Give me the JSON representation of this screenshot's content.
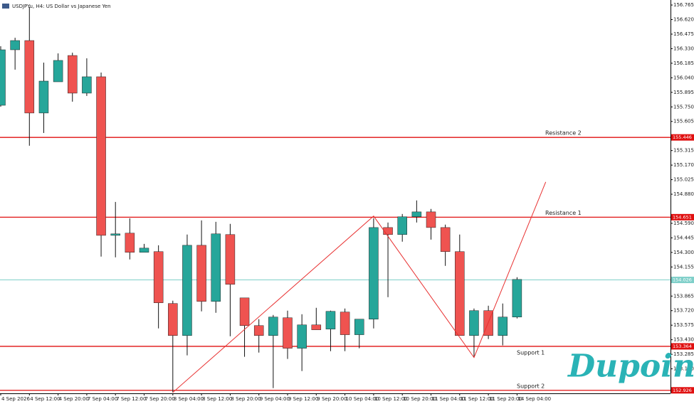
{
  "chart_data": {
    "type": "candlestick",
    "title": "USDJPYu, H4: US Dollar vs Japanese Yen",
    "logo": "Dupoin",
    "x": [
      "4 Sep 2026",
      null,
      "4 Sep 12:00",
      null,
      "4 Sep 20:00",
      null,
      "7 Sep 04:00",
      null,
      "7 Sep 12:00",
      null,
      "7 Sep 20:00",
      null,
      "8 Sep 04:00",
      null,
      "8 Sep 12:00",
      null,
      "8 Sep 20:00",
      null,
      "9 Sep 04:00",
      null,
      "9 Sep 12:00",
      null,
      "9 Sep 20:00",
      null,
      "10 Sep 04:00",
      null,
      "10 Sep 12:00",
      null,
      "10 Sep 20:00",
      null,
      "11 Sep 04:00",
      null,
      "11 Sep 12:00",
      null,
      "11 Sep 20:00",
      null,
      "14 Sep 04:00"
    ],
    "open": [
      155.766,
      156.319,
      156.411,
      155.689,
      156.0,
      156.262,
      155.887,
      156.05,
      154.47,
      154.492,
      154.301,
      154.308,
      153.791,
      153.472,
      154.371,
      153.812,
      154.478,
      153.847,
      153.571,
      153.472,
      153.649,
      153.345,
      153.578,
      153.536,
      153.706,
      153.48,
      153.635,
      154.548,
      154.478,
      154.655,
      154.704,
      154.548,
      154.308,
      153.472,
      153.72,
      153.472,
      153.656
    ],
    "high": [
      156.354,
      156.439,
      156.744,
      156.191,
      156.283,
      156.29,
      156.234,
      156.092,
      154.803,
      154.64,
      154.385,
      154.371,
      153.819,
      154.478,
      154.619,
      154.605,
      154.584,
      153.847,
      153.635,
      153.677,
      153.72,
      153.684,
      153.748,
      153.72,
      153.741,
      153.635,
      154.64,
      154.598,
      154.683,
      154.818,
      154.733,
      154.577,
      154.478,
      153.741,
      153.769,
      153.791,
      154.053
    ],
    "low": [
      155.752,
      156.121,
      155.363,
      155.49,
      156.0,
      155.802,
      155.859,
      154.258,
      154.251,
      154.23,
      154.301,
      153.543,
      152.905,
      153.274,
      153.713,
      153.699,
      153.465,
      153.26,
      153.302,
      152.948,
      153.239,
      153.118,
      153.529,
      153.316,
      153.316,
      153.345,
      153.543,
      153.854,
      154.407,
      154.598,
      154.428,
      154.166,
      153.472,
      153.253,
      153.437,
      153.374,
      153.642
    ],
    "close": [
      156.319,
      156.411,
      155.689,
      156.007,
      156.213,
      155.887,
      156.05,
      154.47,
      154.485,
      154.301,
      154.343,
      153.798,
      153.472,
      154.371,
      153.812,
      154.485,
      153.982,
      153.571,
      153.472,
      153.656,
      153.345,
      153.578,
      153.529,
      153.713,
      153.48,
      153.635,
      154.548,
      154.478,
      154.655,
      154.704,
      154.548,
      154.308,
      153.472,
      153.72,
      153.472,
      153.656,
      154.031
    ],
    "up_color": "#26a69a",
    "down_color": "#ef5350",
    "ylim": [
      152.896,
      156.815
    ],
    "yticks": [
      156.765,
      {
        "value": 156.62,
        "label": "156.620"
      },
      156.475,
      {
        "value": 156.33,
        "label": "156.330"
      },
      156.185,
      {
        "value": 156.04,
        "label": "156.040"
      },
      155.895,
      {
        "value": 155.75,
        "label": "155.750"
      },
      155.605,
      155.315,
      {
        "value": 155.17,
        "label": "155.170"
      },
      155.025,
      {
        "value": 154.88,
        "label": "154.880"
      },
      {
        "value": 154.59,
        "label": "154.590"
      },
      154.445,
      {
        "value": 154.3,
        "label": "154.300"
      },
      154.155,
      153.865,
      {
        "value": 153.72,
        "label": "153.720"
      },
      153.575,
      {
        "value": 153.43,
        "label": "153.430"
      },
      153.285,
      {
        "value": 153.14,
        "label": "153.140"
      }
    ],
    "levels": [
      {
        "name": "Resistance 2",
        "value": 155.446,
        "color": "#e01010"
      },
      {
        "name": "Resistance 1",
        "value": 154.651,
        "color": "#e01010"
      },
      {
        "value": 154.026,
        "color": "#7fcfc9"
      },
      {
        "name": "Support 1",
        "value": 153.364,
        "color": "#e01010"
      },
      {
        "name": "Support 2",
        "value": 152.926,
        "color": "#e01010"
      }
    ],
    "trendline": {
      "x": [
        12,
        26,
        33,
        38
      ],
      "y": [
        152.905,
        154.662,
        153.253,
        155.002
      ],
      "color": "#e83030"
    }
  }
}
